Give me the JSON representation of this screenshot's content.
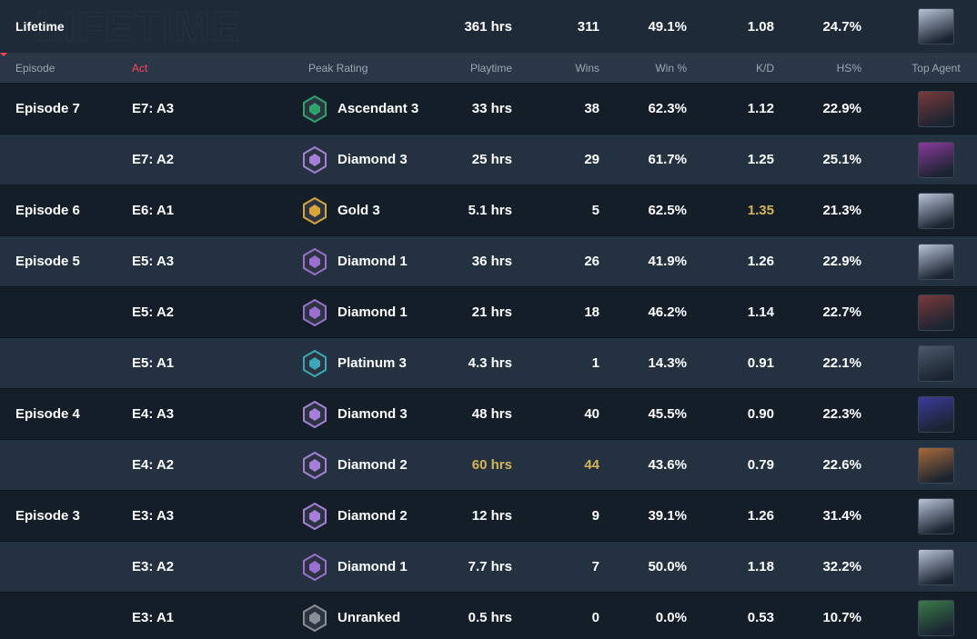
{
  "lifetime": {
    "label": "Lifetime",
    "watermark": "LIFETIME",
    "playtime": "361 hrs",
    "wins": "311",
    "win_pct": "49.1%",
    "kd": "1.08",
    "hs": "24.7%",
    "agent_color": "#b8c4d8"
  },
  "header": {
    "episode": "Episode",
    "act": "Act",
    "peak": "Peak Rating",
    "playtime": "Playtime",
    "wins": "Wins",
    "win_pct": "Win %",
    "kd": "K/D",
    "hs": "HS%",
    "agent": "Top Agent"
  },
  "highlight_color": "#d4b45a",
  "episodes": [
    {
      "label": "Episode 7",
      "color": "#1d5a36",
      "acts": [
        {
          "act": "E7: A3",
          "rank": "Ascendant 3",
          "rank_color": "#2fa36b",
          "playtime": "33 hrs",
          "wins": "38",
          "win_pct": "62.3%",
          "kd": "1.12",
          "hs": "22.9%",
          "agent_color": "#7a3a3a",
          "highlight": []
        },
        {
          "act": "E7: A2",
          "rank": "Diamond 3",
          "rank_color": "#a77fd8",
          "playtime": "25 hrs",
          "wins": "29",
          "win_pct": "61.7%",
          "kd": "1.25",
          "hs": "25.1%",
          "agent_color": "#8a3a9a",
          "highlight": []
        }
      ]
    },
    {
      "label": "Episode 6",
      "color": "#1d5a36",
      "acts": [
        {
          "act": "E6: A1",
          "rank": "Gold 3",
          "rank_color": "#d9a53a",
          "playtime": "5.1 hrs",
          "wins": "5",
          "win_pct": "62.5%",
          "kd": "1.35",
          "hs": "21.3%",
          "agent_color": "#b8c4d8",
          "highlight": [
            "kd"
          ]
        }
      ]
    },
    {
      "label": "Episode 5",
      "color": "#3a3a8a",
      "acts": [
        {
          "act": "E5: A3",
          "rank": "Diamond 1",
          "rank_color": "#9b6fd0",
          "playtime": "36 hrs",
          "wins": "26",
          "win_pct": "41.9%",
          "kd": "1.26",
          "hs": "22.9%",
          "agent_color": "#b8c4d8",
          "highlight": []
        },
        {
          "act": "E5: A2",
          "rank": "Diamond 1",
          "rank_color": "#9b6fd0",
          "playtime": "21 hrs",
          "wins": "18",
          "win_pct": "46.2%",
          "kd": "1.14",
          "hs": "22.7%",
          "agent_color": "#7a3a3a",
          "highlight": []
        },
        {
          "act": "E5: A1",
          "rank": "Platinum 3",
          "rank_color": "#3aa8b8",
          "playtime": "4.3 hrs",
          "wins": "1",
          "win_pct": "14.3%",
          "kd": "0.91",
          "hs": "22.1%",
          "agent_color": "#4a5a6a",
          "highlight": []
        }
      ]
    },
    {
      "label": "Episode 4",
      "color": "#6a3520",
      "acts": [
        {
          "act": "E4: A3",
          "rank": "Diamond 3",
          "rank_color": "#a77fd8",
          "playtime": "48 hrs",
          "wins": "40",
          "win_pct": "45.5%",
          "kd": "0.90",
          "hs": "22.3%",
          "agent_color": "#3a3a9a",
          "highlight": []
        },
        {
          "act": "E4: A2",
          "rank": "Diamond 2",
          "rank_color": "#a77fd8",
          "playtime": "60 hrs",
          "wins": "44",
          "win_pct": "43.6%",
          "kd": "0.79",
          "hs": "22.6%",
          "agent_color": "#a86a3a",
          "highlight": [
            "playtime",
            "wins"
          ]
        }
      ]
    },
    {
      "label": "Episode 3",
      "color": "#5e5020",
      "acts": [
        {
          "act": "E3: A3",
          "rank": "Diamond 2",
          "rank_color": "#a77fd8",
          "playtime": "12 hrs",
          "wins": "9",
          "win_pct": "39.1%",
          "kd": "1.26",
          "hs": "31.4%",
          "agent_color": "#b8c4d8",
          "highlight": []
        },
        {
          "act": "E3: A2",
          "rank": "Diamond 1",
          "rank_color": "#9b6fd0",
          "playtime": "7.7 hrs",
          "wins": "7",
          "win_pct": "50.0%",
          "kd": "1.18",
          "hs": "32.2%",
          "agent_color": "#b8c4d8",
          "highlight": []
        },
        {
          "act": "E3: A1",
          "rank": "Unranked",
          "rank_color": "#8a8f96",
          "playtime": "0.5 hrs",
          "wins": "0",
          "win_pct": "0.0%",
          "kd": "0.53",
          "hs": "10.7%",
          "agent_color": "#3a7a4a",
          "highlight": []
        }
      ]
    }
  ]
}
